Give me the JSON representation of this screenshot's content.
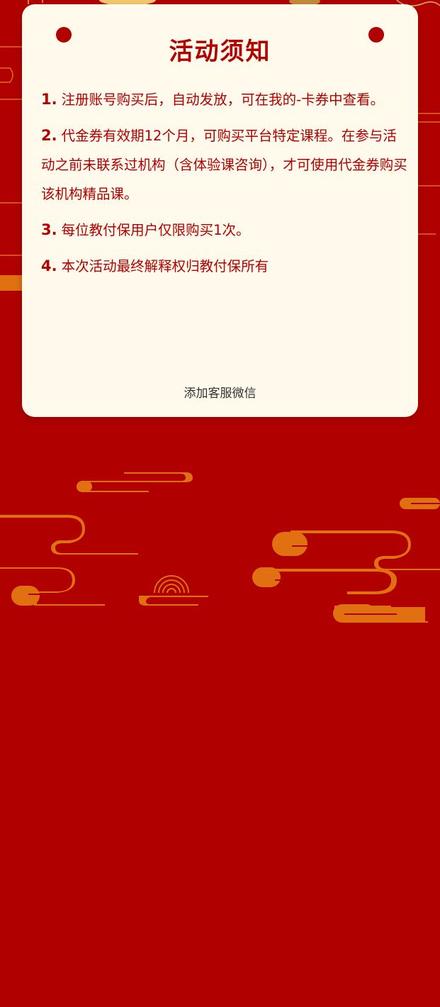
{
  "notice": {
    "title": "活动须知",
    "rules": [
      {
        "num": "1.",
        "text": "注册账号购买后，自动发放，可在我的-卡券中查看。"
      },
      {
        "num": "2.",
        "text": "代金券有效期12个月，可购买平台特定课程。在参与活动之前未联系过机构（含体验课咨询），才可使用代金券购买该机构精品课。"
      },
      {
        "num": "3.",
        "text": "每位教付保用户仅限购买1次。"
      },
      {
        "num": "4.",
        "text": "本次活动最终解释权归教付保所有"
      }
    ],
    "service_link": "添加客服微信"
  },
  "colors": {
    "background": "#b00000",
    "card": "#fffaec",
    "accent": "#b00000",
    "cloud": "#e07010"
  }
}
